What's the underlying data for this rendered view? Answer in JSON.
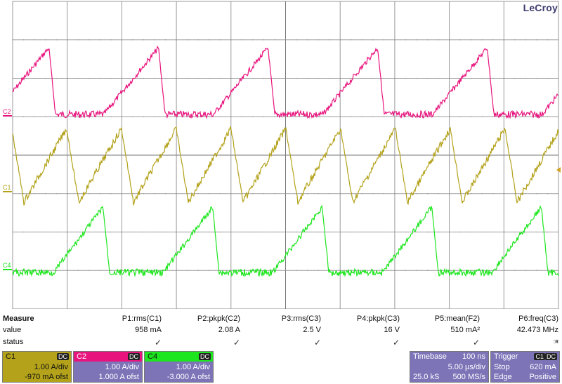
{
  "brand": "LeCroy",
  "colors": {
    "c1": "#b3a21a",
    "c2": "#e8147e",
    "c4": "#1ee61e",
    "panel": "#7d74b8",
    "grid": "#9a9a9a",
    "trigger_marker": "#d4a020"
  },
  "channel_labels": {
    "c1": "C1",
    "c2": "C2",
    "c4": "C4"
  },
  "measure": {
    "header": "Measure",
    "value_label": "value",
    "status_label": "status",
    "params": [
      {
        "name": "P1:rms(C1)",
        "value": "958 mA",
        "status": "✓"
      },
      {
        "name": "P2:pkpk(C2)",
        "value": "2.08 A",
        "status": "✓"
      },
      {
        "name": "P3:rms(C3)",
        "value": "2.5 V",
        "status": "✓"
      },
      {
        "name": "P4:pkpk(C3)",
        "value": "16 V",
        "status": "✓"
      },
      {
        "name": "P5:mean(F2)",
        "value": "510 mA²",
        "status": "✓"
      },
      {
        "name": "P6:freq(C3)",
        "value": "42.473 MHz",
        "status": ":ʀ"
      }
    ]
  },
  "channels": [
    {
      "name": "C1",
      "coupling": "DC",
      "scale": "1.00 A/div",
      "offset": "-970 mA ofst"
    },
    {
      "name": "C2",
      "coupling": "DC",
      "scale": "1.00 A/div",
      "offset": "1.000 A ofst"
    },
    {
      "name": "C4",
      "coupling": "DC",
      "scale": "1.00 A/div",
      "offset": "-3.000 A ofst"
    }
  ],
  "timebase": {
    "label": "Timebase",
    "delay": "100 ns",
    "scale": "5.00 µs/div",
    "samples": "25.0 kS",
    "rate": "500 MS/s"
  },
  "trigger": {
    "label": "Trigger",
    "channel": "C1",
    "coupling": "DC",
    "mode": "Stop",
    "level": "620 mA",
    "type": "Edge",
    "slope": "Positive"
  }
}
